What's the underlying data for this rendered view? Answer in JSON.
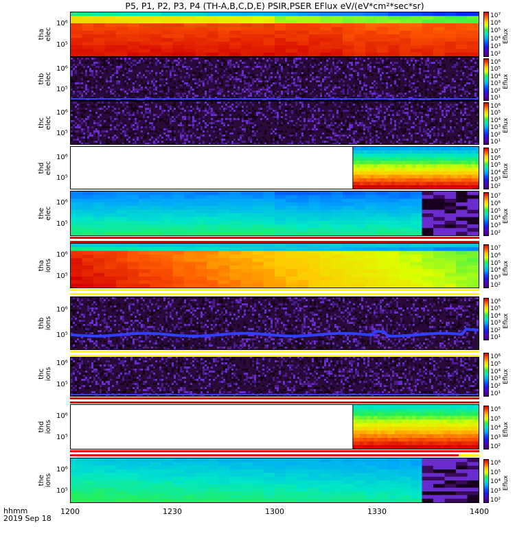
{
  "title": "P5, P1, P2, P3, P4 (TH-A,B,C,D,E) PSIR,PSER EFlux eV/(eV*cm²*sec*sr)",
  "footer": {
    "label": "hhmm",
    "date": "2019 Sep 18"
  },
  "colors": {
    "flag_red": "#e8000b",
    "flag_yellow": "#ffff00",
    "white": "#ffffff"
  },
  "chart_data": {
    "type": "heatmap",
    "x_ticks": [
      "1200",
      "1230",
      "1300",
      "1330",
      "1400"
    ],
    "x_range_minutes": [
      0,
      120
    ],
    "colorbar_label": "Eflux",
    "panels": [
      {
        "label": "tha elec",
        "y_ticks": [
          "10⁶",
          "10⁵"
        ],
        "cb_ticks": [
          "10⁷",
          "10⁶",
          "10⁵",
          "10⁴",
          "10³",
          "10²"
        ],
        "data_start": 0,
        "data_end": 120,
        "pattern": "tha_elec"
      },
      {
        "label": "thb elec",
        "y_ticks": [
          "10⁶",
          "10⁵"
        ],
        "cb_ticks": [
          "10⁶",
          "10⁵",
          "10⁴",
          "10³",
          "10²",
          "10¹"
        ],
        "data_start": 0,
        "data_end": 120,
        "pattern": "noise"
      },
      {
        "label": "thc elec",
        "y_ticks": [
          "10⁶",
          "10⁵"
        ],
        "cb_ticks": [
          "10⁶",
          "10⁵",
          "10⁴",
          "10³",
          "10²",
          "10¹"
        ],
        "data_start": 0,
        "data_end": 120,
        "pattern": "noise"
      },
      {
        "label": "thd elec",
        "y_ticks": [
          "10⁶",
          "10⁵"
        ],
        "cb_ticks": [
          "10⁷",
          "10⁶",
          "10⁵",
          "10⁴",
          "10³",
          "10²"
        ],
        "data_start": 83,
        "data_end": 120,
        "pattern": "thd_elec"
      },
      {
        "label": "the elec",
        "y_ticks": [
          "10⁶",
          "10⁵"
        ],
        "cb_ticks": [
          "10⁷",
          "10⁶",
          "10⁵",
          "10⁴",
          "10³",
          "10²"
        ],
        "data_start": 0,
        "data_end": 120,
        "pattern": "the_elec"
      },
      {
        "label": "tha ions",
        "y_ticks": [
          "10⁶",
          "10⁵"
        ],
        "cb_ticks": [
          "10⁷",
          "10⁶",
          "10⁵",
          "10⁴",
          "10³",
          "10²"
        ],
        "data_start": 0,
        "data_end": 120,
        "pattern": "tha_ions"
      },
      {
        "label": "thb ions",
        "y_ticks": [
          "10⁶",
          "10⁵"
        ],
        "cb_ticks": [
          "10⁶",
          "10⁵",
          "10⁴",
          "10³",
          "10²",
          "10¹"
        ],
        "data_start": 0,
        "data_end": 120,
        "pattern": "noise_band"
      },
      {
        "label": "thc ions",
        "y_ticks": [
          "10⁶",
          "10⁵"
        ],
        "cb_ticks": [
          "10⁶",
          "10⁵",
          "10⁴",
          "10³",
          "10²",
          "10¹"
        ],
        "data_start": 0,
        "data_end": 120,
        "pattern": "noise"
      },
      {
        "label": "thd ions",
        "y_ticks": [
          "10⁶",
          "10⁵"
        ],
        "cb_ticks": [
          "10⁶",
          "10⁵",
          "10⁴",
          "10³",
          "10²"
        ],
        "data_start": 83,
        "data_end": 120,
        "pattern": "thd_ions"
      },
      {
        "label": "the ions",
        "y_ticks": [
          "10⁶",
          "10⁵"
        ],
        "cb_ticks": [
          "10⁶",
          "10⁵",
          "10⁴",
          "10³",
          "10²"
        ],
        "data_start": 0,
        "data_end": 120,
        "pattern": "the_ions"
      }
    ],
    "mode_flags": [
      {
        "after_panel": "the elec",
        "stripes": [
          "red",
          "white",
          "red"
        ]
      },
      {
        "after_panel": "tha ions",
        "stripes": [
          "yellow",
          "white",
          "yellow"
        ]
      },
      {
        "after_panel": "thb ions",
        "stripes": [
          "yellow",
          "white",
          "yellow"
        ]
      },
      {
        "after_panel": "thc ions",
        "stripes": [
          "red",
          "white",
          "red"
        ]
      },
      {
        "after_panel": "thd ions",
        "stripes": [
          "red",
          "white",
          "red_then_yellow"
        ]
      }
    ]
  }
}
